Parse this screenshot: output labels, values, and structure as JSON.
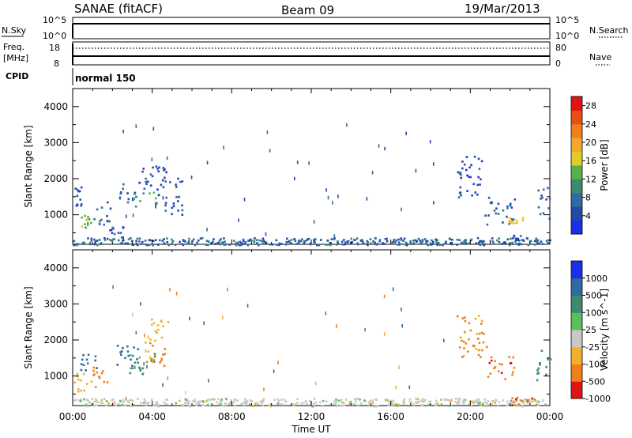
{
  "header": {
    "station": "SANAE (fitACF)",
    "beam": "Beam 09",
    "date": "19/Mar/2013"
  },
  "top_panels": {
    "nsky_label": "N.Sky",
    "nsky_ticks": [
      "10^5",
      "10^0"
    ],
    "nsearch_label": "N.Search",
    "nsearch_ticks": [
      "10^5",
      "10^0"
    ],
    "freq_label": "Freq.",
    "freq_unit": "[MHz]",
    "freq_ticks": [
      "18",
      "8"
    ],
    "nave_label": "Nave",
    "nave_ticks": [
      "80",
      "0"
    ],
    "cpid_label": "CPID",
    "cpid_value": "normal 150"
  },
  "chart_data": [
    {
      "type": "heatmap",
      "title": "",
      "xlabel": "Time UT",
      "ylabel": "Slant Range [km]",
      "xlim": [
        0,
        24
      ],
      "ylim": [
        180,
        4500
      ],
      "x_ticks": [
        "00:00",
        "04:00",
        "08:00",
        "12:00",
        "16:00",
        "20:00",
        "00:00"
      ],
      "y_ticks": [
        1000,
        2000,
        3000,
        4000
      ],
      "colorbar": {
        "label": "Power [dB]",
        "ticks": [
          4,
          8,
          12,
          16,
          20,
          24,
          28
        ],
        "range": [
          0,
          30
        ],
        "colors": [
          "#1b2ee8",
          "#224aa8",
          "#2f6aa0",
          "#3d8a70",
          "#58b04a",
          "#e2cc2a",
          "#f2a92a",
          "#f07f1c",
          "#e84e16",
          "#e01414"
        ]
      },
      "clusters": [
        {
          "t": [
            0.0,
            0.4
          ],
          "r": [
            1250,
            1800
          ],
          "value": 5
        },
        {
          "t": [
            0.3,
            1.0
          ],
          "r": [
            600,
            1000
          ],
          "value": 14
        },
        {
          "t": [
            1.0,
            1.9
          ],
          "r": [
            700,
            1400
          ],
          "value": 6
        },
        {
          "t": [
            1.8,
            2.5
          ],
          "r": [
            300,
            700
          ],
          "value": 5
        },
        {
          "t": [
            2.3,
            3.3
          ],
          "r": [
            1300,
            1900
          ],
          "value": 6
        },
        {
          "t": [
            3.0,
            4.2
          ],
          "r": [
            1250,
            1650
          ],
          "value": 13
        },
        {
          "t": [
            3.3,
            4.7
          ],
          "r": [
            1500,
            2500
          ],
          "value": 5
        },
        {
          "t": [
            4.6,
            5.5
          ],
          "r": [
            1000,
            2100
          ],
          "value": 5
        },
        {
          "t": [
            0.0,
            24.0
          ],
          "r": [
            180,
            380
          ],
          "value": 7
        },
        {
          "t": [
            19.3,
            20.6
          ],
          "r": [
            1500,
            2700
          ],
          "value": 4
        },
        {
          "t": [
            20.6,
            22.2
          ],
          "r": [
            750,
            1500
          ],
          "value": 6
        },
        {
          "t": [
            21.8,
            22.6
          ],
          "r": [
            780,
            950
          ],
          "value": 18
        },
        {
          "t": [
            22.0,
            23.6
          ],
          "r": [
            200,
            500
          ],
          "value": 5
        },
        {
          "t": [
            23.3,
            24.0
          ],
          "r": [
            900,
            1800
          ],
          "value": 7
        }
      ]
    },
    {
      "type": "heatmap",
      "title": "",
      "xlabel": "Time UT",
      "ylabel": "Slant Range [km]",
      "xlim": [
        0,
        24
      ],
      "ylim": [
        180,
        4500
      ],
      "x_ticks": [
        "00:00",
        "04:00",
        "08:00",
        "12:00",
        "16:00",
        "20:00",
        "00:00"
      ],
      "y_ticks": [
        1000,
        2000,
        3000,
        4000
      ],
      "colorbar": {
        "label": "Velocity [m s^-1]",
        "ticks": [
          "1000",
          "500",
          "100",
          "25",
          "-25",
          "-100",
          "-500",
          "-1000"
        ],
        "colors": [
          "#1b2ee8",
          "#2f6aa0",
          "#3d8a70",
          "#58c05a",
          "#c8c8c8",
          "#f2b02a",
          "#f07f1c",
          "#e01414"
        ]
      },
      "clusters": [
        {
          "t": [
            0.0,
            1.0
          ],
          "r": [
            600,
            1100
          ],
          "velocity": -200
        },
        {
          "t": [
            0.3,
            1.2
          ],
          "r": [
            1100,
            1700
          ],
          "velocity": 400
        },
        {
          "t": [
            1.0,
            1.7
          ],
          "r": [
            650,
            1300
          ],
          "velocity": -400
        },
        {
          "t": [
            2.1,
            3.3
          ],
          "r": [
            1300,
            1900
          ],
          "velocity": 500
        },
        {
          "t": [
            2.8,
            4.2
          ],
          "r": [
            1000,
            1650
          ],
          "velocity": 80
        },
        {
          "t": [
            3.6,
            4.6
          ],
          "r": [
            1300,
            2000
          ],
          "velocity": -400
        },
        {
          "t": [
            3.8,
            4.8
          ],
          "r": [
            2000,
            2600
          ],
          "velocity": -150
        },
        {
          "t": [
            0.0,
            24.0
          ],
          "r": [
            180,
            400
          ],
          "velocity": -30
        },
        {
          "t": [
            19.3,
            20.8
          ],
          "r": [
            1500,
            2700
          ],
          "velocity": -400
        },
        {
          "t": [
            20.8,
            22.2
          ],
          "r": [
            900,
            1600
          ],
          "velocity": -600
        },
        {
          "t": [
            22.0,
            23.4
          ],
          "r": [
            200,
            500
          ],
          "velocity": -600
        },
        {
          "t": [
            23.3,
            24.0
          ],
          "r": [
            900,
            1800
          ],
          "velocity": 200
        }
      ]
    }
  ]
}
